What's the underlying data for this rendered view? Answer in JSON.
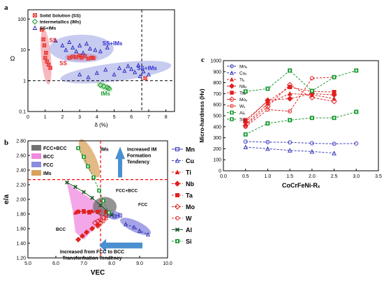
{
  "chart_data": [
    {
      "panel_label": "a",
      "type": "scatter",
      "xlabel": "δ (%)",
      "ylabel": "Ω",
      "xlim": [
        0,
        8.5
      ],
      "ylim": [
        0.1,
        200
      ],
      "y_scale": "log",
      "xticks": [
        "0",
        "1",
        "2",
        "3",
        "4",
        "5",
        "6",
        "7",
        "8"
      ],
      "yticks": [
        "0.1",
        "1",
        "10",
        "100"
      ],
      "grid": false,
      "legend_position": "top-left",
      "reference_lines": [
        {
          "orientation": "horizontal",
          "value": 1
        },
        {
          "orientation": "vertical",
          "value": 6.6
        }
      ],
      "series": [
        {
          "name": "Solid Solution (SS)",
          "marker": "x-square",
          "color": "#e8302a",
          "points": [
            [
              0.8,
              45
            ],
            [
              0.9,
              22
            ],
            [
              0.95,
              14
            ],
            [
              1.05,
              8
            ],
            [
              1.0,
              5.5
            ],
            [
              1.1,
              4.2
            ],
            [
              1.2,
              3.3
            ],
            [
              1.3,
              2.6
            ],
            [
              2.4,
              5.5
            ],
            [
              2.6,
              6
            ],
            [
              2.8,
              5.8
            ],
            [
              3.0,
              6.5
            ],
            [
              3.1,
              5.6
            ],
            [
              3.3,
              6.2
            ],
            [
              3.5,
              5.2
            ],
            [
              3.7,
              5.6
            ],
            [
              3.8,
              5.4
            ],
            [
              6.8,
              1.2
            ]
          ]
        },
        {
          "name": "Intermetallics (IMs)",
          "marker": "diamond",
          "color": "#1a9a32",
          "points": [
            [
              4.2,
              0.72
            ],
            [
              4.4,
              0.66
            ],
            [
              4.6,
              0.6
            ],
            [
              4.7,
              0.56
            ]
          ]
        },
        {
          "name": "SS+IMs",
          "marker": "triangle",
          "color": "#3030c0",
          "points": [
            [
              1.6,
              20
            ],
            [
              2.0,
              14
            ],
            [
              2.2,
              10
            ],
            [
              2.4,
              18
            ],
            [
              2.6,
              12
            ],
            [
              2.8,
              9
            ],
            [
              3.0,
              14
            ],
            [
              3.2,
              8
            ],
            [
              3.4,
              16
            ],
            [
              3.6,
              11
            ],
            [
              3.9,
              10
            ],
            [
              4.2,
              9
            ],
            [
              4.6,
              12
            ],
            [
              3.0,
              1.6
            ],
            [
              3.5,
              1.3
            ],
            [
              4.0,
              1.8
            ],
            [
              4.5,
              2.3
            ],
            [
              5.0,
              1.6
            ],
            [
              5.3,
              2.6
            ],
            [
              5.6,
              2.1
            ],
            [
              5.8,
              3.0
            ],
            [
              6.0,
              2.4
            ],
            [
              6.2,
              1.9
            ],
            [
              6.4,
              3.2
            ],
            [
              6.5,
              1.4
            ],
            [
              6.7,
              2.0
            ],
            [
              7.0,
              1.6
            ]
          ]
        }
      ],
      "annotations": [
        "SS",
        "SS",
        "SS+IMs",
        "SS+IMs",
        "IMs"
      ],
      "region_colors": {
        "SS": "#f4a0a8",
        "SS+IMs": "#a4a8e6",
        "IMs": "#a8dca0"
      }
    },
    {
      "panel_label": "b",
      "type": "scatter",
      "xlabel": "VEC",
      "ylabel": "e/a",
      "xlim": [
        5.0,
        10.0
      ],
      "ylim": [
        1.2,
        2.8
      ],
      "xticks": [
        "5.0",
        "6.0",
        "7.0",
        "8.0",
        "9.0",
        "10.0"
      ],
      "yticks": [
        "1.20",
        "1.40",
        "1.60",
        "1.80",
        "2.00",
        "2.20",
        "2.40",
        "2.60",
        "2.80"
      ],
      "reference_lines": [
        {
          "orientation": "horizontal",
          "value": 2.27,
          "color": "#ff0000"
        },
        {
          "orientation": "vertical",
          "value": 7.6,
          "color": "#ff0000"
        }
      ],
      "region_legend": [
        {
          "name": "FCC+BCC",
          "color": "#707070"
        },
        {
          "name": "BCC",
          "color": "#f08ae0"
        },
        {
          "name": "FCC",
          "color": "#8c8ce0"
        },
        {
          "name": "IMs",
          "color": "#d9a25c"
        }
      ],
      "series": [
        {
          "name": "Mn",
          "marker": "square-open",
          "line": "solid",
          "color": "#3a3ab8",
          "points": [
            [
              7.9,
              1.78
            ],
            [
              8.1,
              1.77
            ],
            [
              8.3,
              1.78
            ]
          ]
        },
        {
          "name": "Cu",
          "marker": "triangle-open",
          "line": "dashed",
          "color": "#3a3ab8",
          "points": [
            [
              8.5,
              1.66
            ],
            [
              8.8,
              1.62
            ],
            [
              9.0,
              1.57
            ],
            [
              9.3,
              1.52
            ]
          ]
        },
        {
          "name": "Ti",
          "marker": "triangle-filled",
          "line": "dashed",
          "color": "#e02020",
          "points": [
            [
              7.5,
              1.83
            ],
            [
              7.3,
              1.84
            ],
            [
              7.2,
              1.82
            ],
            [
              7.0,
              1.83
            ],
            [
              6.8,
              1.84
            ],
            [
              6.7,
              1.82
            ]
          ]
        },
        {
          "name": "Nb",
          "marker": "diamond-filled",
          "line": "dashed",
          "color": "#e02020",
          "points": [
            [
              7.5,
              1.65
            ],
            [
              7.3,
              1.6
            ],
            [
              7.1,
              1.55
            ],
            [
              6.95,
              1.5
            ],
            [
              6.8,
              1.45
            ]
          ]
        },
        {
          "name": "Ta",
          "marker": "square-filled",
          "line": "dashed",
          "color": "#e02020",
          "points": [
            [
              7.8,
              1.83
            ],
            [
              7.5,
              1.83
            ],
            [
              7.2,
              1.83
            ],
            [
              7.0,
              1.84
            ],
            [
              6.8,
              1.83
            ]
          ]
        },
        {
          "name": "Mo",
          "marker": "diamond-open",
          "line": "dashed",
          "color": "#e02020",
          "points": [
            [
              7.8,
              1.78
            ],
            [
              7.7,
              1.75
            ],
            [
              7.6,
              1.72
            ],
            [
              7.5,
              1.7
            ],
            [
              7.4,
              1.68
            ]
          ]
        },
        {
          "name": "W",
          "marker": "circle-open",
          "line": "dashed",
          "color": "#e02020",
          "points": [
            [
              7.8,
              1.74
            ],
            [
              7.7,
              1.7
            ],
            [
              7.6,
              1.67
            ],
            [
              7.5,
              1.63
            ]
          ]
        },
        {
          "name": "Al",
          "marker": "x",
          "line": "solid",
          "color": "#1f5a2a",
          "points": [
            [
              8.0,
              1.79
            ],
            [
              7.6,
              1.92
            ],
            [
              7.3,
              2.02
            ],
            [
              7.0,
              2.1
            ],
            [
              6.7,
              2.17
            ],
            [
              6.4,
              2.23
            ]
          ]
        },
        {
          "name": "Si",
          "marker": "square-dot",
          "line": "dashed",
          "color": "#1a9a32",
          "points": [
            [
              7.9,
              1.82
            ],
            [
              7.7,
              1.98
            ],
            [
              7.55,
              2.12
            ],
            [
              7.35,
              2.3
            ],
            [
              7.15,
              2.45
            ],
            [
              7.0,
              2.58
            ],
            [
              6.8,
              2.7
            ]
          ]
        }
      ],
      "annotations": {
        "ims": "IMs",
        "fcc_bcc": "FCC+BCC",
        "fcc": "FCC",
        "bcc": "BCC",
        "arrow_up": [
          "Increased IM",
          "Formation",
          "Tendency"
        ],
        "arrow_left": [
          "Increased from FCC to BCC",
          "Transformation Tendency"
        ]
      }
    },
    {
      "panel_label": "c",
      "type": "line",
      "xlabel": "CoCrFeNi-Rₓ",
      "ylabel": "Micro-hardness (Hv)",
      "xlim": [
        0.0,
        3.5
      ],
      "ylim": [
        0,
        1000
      ],
      "xticks": [
        "0.0",
        "0.5",
        "1.0",
        "1.5",
        "2.0",
        "2.5",
        "3.0",
        "3.5"
      ],
      "yticks": [
        "0",
        "100",
        "200",
        "300",
        "400",
        "500",
        "600",
        "700",
        "800",
        "900",
        "1000"
      ],
      "legend_position": "top-left",
      "series": [
        {
          "name": "Mnₓ",
          "marker": "circle-open",
          "line": "dashed",
          "color": "#3a3ab8",
          "x": [
            0.5,
            1.0,
            1.5,
            2.0,
            2.5,
            3.0
          ],
          "values": [
            265,
            260,
            258,
            250,
            245,
            248
          ]
        },
        {
          "name": "Cuₓ",
          "marker": "triangle-open",
          "line": "dashed",
          "color": "#3a3ab8",
          "x": [
            0.5,
            1.0,
            1.5,
            2.0,
            2.5
          ],
          "values": [
            215,
            200,
            185,
            175,
            160
          ]
        },
        {
          "name": "Tiₓ",
          "marker": "triangle-filled",
          "line": "dashed",
          "color": "#e02020",
          "x": [
            0.5,
            1.0,
            1.5,
            2.0,
            2.5
          ],
          "values": [
            420,
            610,
            700,
            690,
            655
          ]
        },
        {
          "name": "Nbₓ",
          "marker": "diamond-filled",
          "line": "dashed",
          "color": "#e02020",
          "x": [
            0.5,
            1.0,
            1.5,
            2.0,
            2.5
          ],
          "values": [
            440,
            640,
            655,
            700,
            690
          ]
        },
        {
          "name": "Taₓ",
          "marker": "square-filled",
          "line": "dashed",
          "color": "#e02020",
          "x": [
            0.5,
            1.0,
            1.5,
            2.0,
            2.5
          ],
          "values": [
            460,
            630,
            760,
            720,
            715
          ]
        },
        {
          "name": "Moₓ",
          "marker": "diamond-open",
          "line": "dashed",
          "color": "#e02020",
          "x": [
            0.5,
            1.0,
            1.5,
            2.0,
            2.5
          ],
          "values": [
            410,
            585,
            780,
            665,
            630
          ]
        },
        {
          "name": "Wₓ",
          "marker": "circle-open",
          "line": "dashed",
          "color": "#e02020",
          "x": [
            0.5,
            1.0,
            1.5,
            2.0,
            2.5
          ],
          "values": [
            400,
            555,
            540,
            840,
            850
          ]
        },
        {
          "name": "Alₓ",
          "marker": "square-dot",
          "line": "dashed",
          "color": "#1a9a32",
          "x": [
            0.5,
            1.0,
            1.5,
            2.0,
            2.5,
            3.0
          ],
          "values": [
            720,
            745,
            910,
            725,
            850,
            910
          ]
        },
        {
          "name": "Siₓ",
          "marker": "square-dot",
          "line": "dashed",
          "color": "#1a9a32",
          "x": [
            0.5,
            1.0,
            1.5,
            2.0,
            2.5,
            3.0
          ],
          "values": [
            330,
            430,
            460,
            480,
            480,
            535
          ]
        }
      ]
    }
  ]
}
